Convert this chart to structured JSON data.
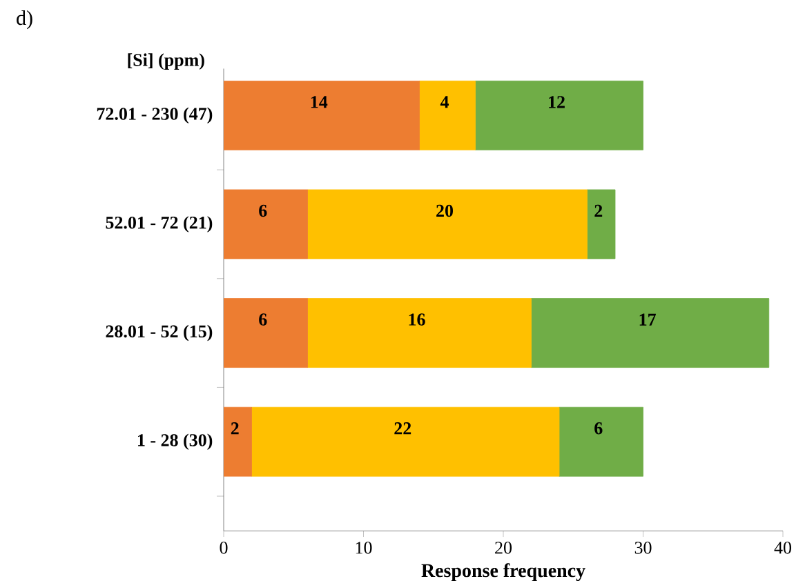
{
  "chart_data": {
    "type": "bar",
    "orientation": "horizontal",
    "stacked": true,
    "title": "d)",
    "ylabel": "[Si] (ppm)",
    "xlabel": "Response frequency",
    "categories": [
      "72.01 - 230 (47)",
      "52.01 - 72 (21)",
      "28.01 - 52 (15)",
      "1 - 28 (30)"
    ],
    "series": [
      {
        "color": "#ed7d31",
        "values": [
          14,
          6,
          6,
          2
        ]
      },
      {
        "color": "#ffc000",
        "values": [
          4,
          20,
          16,
          22
        ]
      },
      {
        "color": "#70ad47",
        "values": [
          12,
          2,
          17,
          6
        ]
      }
    ],
    "xlim": [
      0,
      40
    ],
    "xticks": [
      0,
      10,
      20,
      30,
      40
    ],
    "data_labels": true
  }
}
